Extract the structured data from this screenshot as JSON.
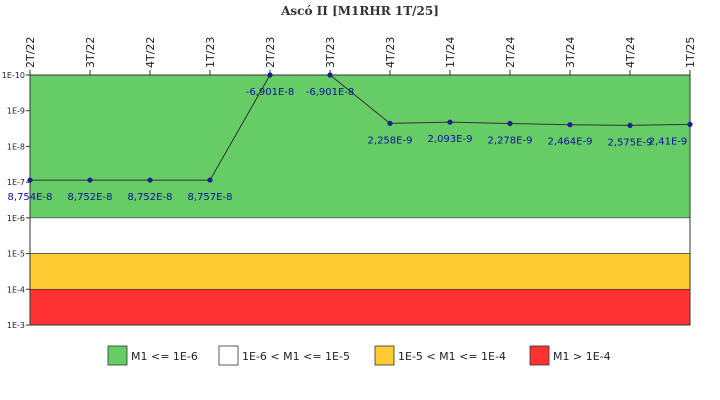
{
  "chart_data": {
    "type": "line",
    "title": "Ascó II [M1RHR 1T/25]",
    "xlabel": "",
    "ylabel": "",
    "y_scale": "log",
    "y_reversed": true,
    "ylim": [
      1e-10,
      0.001
    ],
    "y_tick_labels": [
      "1E-10",
      "1E-9",
      "1E-8",
      "1E-7",
      "1E-6",
      "1E-5",
      "1E-4",
      "1E-3"
    ],
    "categories": [
      "2T/22",
      "3T/22",
      "4T/22",
      "1T/23",
      "2T/23",
      "3T/23",
      "4T/23",
      "1T/24",
      "2T/24",
      "3T/24",
      "4T/24",
      "1T/25"
    ],
    "series": [
      {
        "values": [
          8.754e-08,
          8.752e-08,
          8.752e-08,
          8.757e-08,
          -6.901e-08,
          -6.901e-08,
          2.258e-09,
          2.093e-09,
          2.278e-09,
          2.464e-09,
          2.575e-09,
          2.41e-09
        ],
        "plotted_values": [
          8.754e-08,
          8.752e-08,
          8.752e-08,
          8.757e-08,
          1e-10,
          1e-10,
          2.258e-09,
          2.093e-09,
          2.278e-09,
          2.464e-09,
          2.575e-09,
          2.41e-09
        ],
        "labels": [
          "8,754E-8",
          "8,752E-8",
          "8,752E-8",
          "8,757E-8",
          "-6,901E-8",
          "-6,901E-8",
          "2,258E-9",
          "2,093E-9",
          "2,278E-9",
          "2,464E-9",
          "2,575E-9",
          "2,41E-9"
        ],
        "color": "#1f1f8f",
        "line_color": "#333333"
      }
    ],
    "bands": [
      {
        "from": 1e-10,
        "to": 1e-06,
        "color": "#66cc66"
      },
      {
        "from": 1e-06,
        "to": 1e-05,
        "color": "#ffffff"
      },
      {
        "from": 1e-05,
        "to": 0.0001,
        "color": "#ffcc33"
      },
      {
        "from": 0.0001,
        "to": 0.001,
        "color": "#ff3333"
      }
    ],
    "grid": false,
    "legend_position": "bottom",
    "legend": [
      {
        "label": "M1 <= 1E-6",
        "color": "#66cc66"
      },
      {
        "label": "1E-6 < M1 <= 1E-5",
        "color": "#ffffff"
      },
      {
        "label": "1E-5 < M1 <= 1E-4",
        "color": "#ffcc33"
      },
      {
        "label": "M1 > 1E-4",
        "color": "#ff3333"
      }
    ]
  }
}
